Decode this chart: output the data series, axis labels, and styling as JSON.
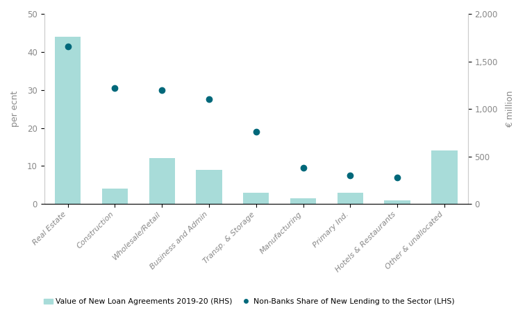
{
  "categories": [
    "Real Estate",
    "Construction",
    "Wholesale/Retail",
    "Business and Admin",
    "Transp. & Storage",
    "Manufacturing",
    "Primary Ind.",
    "Hotels & Restaurants",
    "Other & unallocated"
  ],
  "bar_values_lhs_scale": [
    44,
    4,
    12,
    9,
    3,
    1.5,
    3,
    1,
    14
  ],
  "dot_values_lhs": [
    41.5,
    30.5,
    30,
    27.5,
    19,
    9.5,
    7.5,
    7,
    null
  ],
  "bar_color": "#a8dcd9",
  "dot_color": "#00687a",
  "lhs_ylim": [
    0,
    50
  ],
  "rhs_ylim": [
    0,
    2000
  ],
  "lhs_yticks": [
    0,
    10,
    20,
    30,
    40,
    50
  ],
  "rhs_yticks": [
    0,
    500,
    1000,
    1500,
    2000
  ],
  "lhs_ylabel": "per ecnt",
  "rhs_ylabel": "€ million",
  "legend_bar_label": "Value of New Loan Agreements 2019-20 (RHS)",
  "legend_dot_label": "Non-Banks Share of New Lending to the Sector (LHS)",
  "background_color": "#ffffff",
  "tick_label_color": "#888888",
  "axis_label_color": "#888888",
  "figure_width": 7.56,
  "figure_height": 4.5,
  "dpi": 100
}
